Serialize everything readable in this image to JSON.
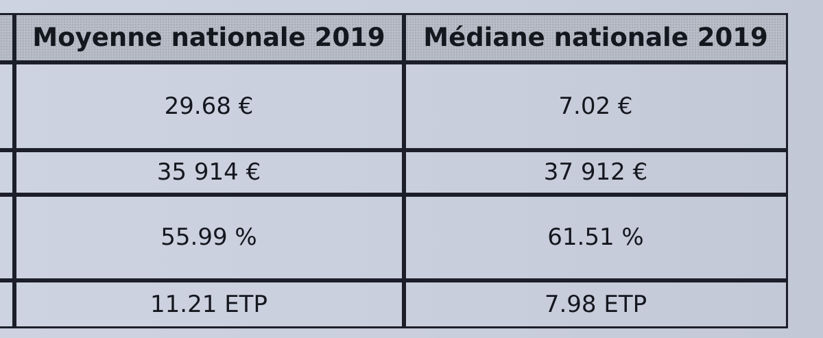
{
  "table": {
    "headers": [
      "Moyenne nationale 2019",
      "Médiane nationale 2019"
    ],
    "rows": [
      [
        "29.68 €",
        "7.02 €"
      ],
      [
        "35 914 €",
        "37 912 €"
      ],
      [
        "55.99 %",
        "61.51 %"
      ],
      [
        "11.21 ETP",
        "7.98 ETP"
      ]
    ]
  }
}
